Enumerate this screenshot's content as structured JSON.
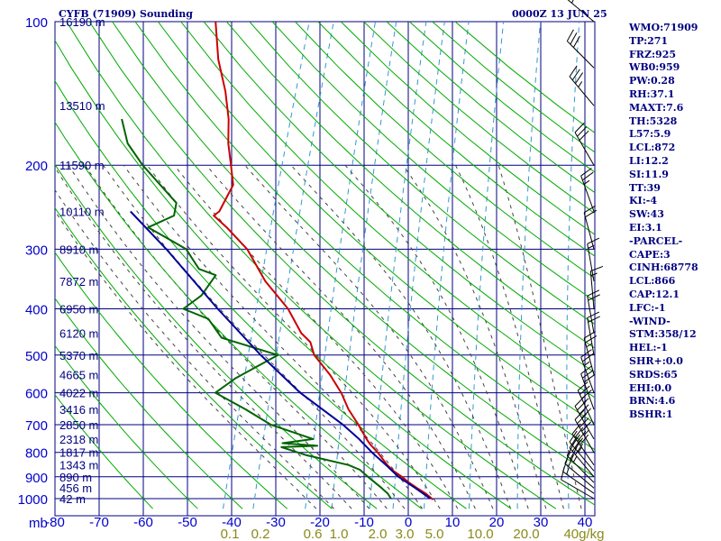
{
  "header": {
    "station": "CYFB (71909) Sounding",
    "time": "0000Z 13 JUN 25"
  },
  "indices": [
    "WMO:71909",
    "TP:271",
    "FRZ:925",
    "WB0:959",
    "PW:0.28",
    "RH:37.1",
    "MAXT:7.6",
    "TH:5328",
    "L57:5.9",
    "LCL:872",
    "LI:12.2",
    "SI:11.9",
    "TT:39",
    "KI:-4",
    "SW:43",
    "EI:3.1",
    "-PARCEL-",
    "CAPE:3",
    "CINH:68778",
    "LCL:866",
    "CAP:12.1",
    "LFC:-1",
    "-WIND-",
    "STM:358/12",
    "HEL:-1",
    "SHR+:0.0",
    "SRDS:65",
    "EHI:0.0",
    "BRN:4.6",
    "BSHR:1"
  ],
  "colors": {
    "grid": "#000080",
    "dry_adiabat": "#00aa00",
    "moist_adiabat": "#444444",
    "mixing_ratio": "#3399cc",
    "temperature": "#cc0000",
    "dewpoint": "#006400",
    "parcel": "#000099",
    "axis_text": "#0000cc",
    "mixing_text": "#8a8a1a"
  },
  "chart_data": {
    "type": "skew-t",
    "pressure_axis_unit": "mb",
    "temperature_axis_unit": "°C",
    "mixing_ratio_unit": "g/kg",
    "pressure_levels": [
      100,
      200,
      300,
      400,
      500,
      600,
      700,
      800,
      900,
      1000
    ],
    "pressure_tick_labels": [
      "100",
      "200",
      "300",
      "400",
      "500",
      "600",
      "700",
      "800",
      "900",
      "1000"
    ],
    "temperature_ticks": [
      -80,
      -70,
      -60,
      -50,
      -40,
      -30,
      -20,
      -10,
      0,
      10,
      20,
      30,
      40
    ],
    "temperature_tick_labels": [
      "-80",
      "-70",
      "-60",
      "-50",
      "-40",
      "-30",
      "-20",
      "-10",
      "0",
      "10",
      "20",
      "30",
      "40"
    ],
    "mixing_ratio_labels": [
      "0.1",
      "0.2",
      "0.6",
      "1.0",
      "2.0",
      "3.0",
      "5.0",
      "10.0",
      "20.0",
      "40g/kg"
    ],
    "height_labels": [
      {
        "p": 100,
        "text": "16190 m"
      },
      {
        "p": 150,
        "text": "13510 m"
      },
      {
        "p": 200,
        "text": "11590 m"
      },
      {
        "p": 250,
        "text": "10110 m"
      },
      {
        "p": 300,
        "text": "8910 m"
      },
      {
        "p": 350,
        "text": "7872 m"
      },
      {
        "p": 400,
        "text": "6950 m"
      },
      {
        "p": 450,
        "text": "6120 m"
      },
      {
        "p": 500,
        "text": "5370 m"
      },
      {
        "p": 550,
        "text": "4665 m"
      },
      {
        "p": 600,
        "text": "4022 m"
      },
      {
        "p": 650,
        "text": "3416 m"
      },
      {
        "p": 700,
        "text": "2850 m"
      },
      {
        "p": 750,
        "text": "2318 m"
      },
      {
        "p": 800,
        "text": "1817 m"
      },
      {
        "p": 850,
        "text": "1343 m"
      },
      {
        "p": 900,
        "text": "890 m"
      },
      {
        "p": 950,
        "text": "456 m"
      },
      {
        "p": 1000,
        "text": "42 m"
      }
    ],
    "series": [
      {
        "name": "Temperature",
        "points": [
          {
            "p": 1005,
            "t": 5.7
          },
          {
            "p": 975,
            "t": 3.5
          },
          {
            "p": 950,
            "t": 1.1
          },
          {
            "p": 925,
            "t": -1.2
          },
          {
            "p": 900,
            "t": -3.2
          },
          {
            "p": 875,
            "t": -5.6
          },
          {
            "p": 850,
            "t": -7.5
          },
          {
            "p": 800,
            "t": -10.7
          },
          {
            "p": 770,
            "t": -13.0
          },
          {
            "p": 750,
            "t": -14.3
          },
          {
            "p": 700,
            "t": -17.3
          },
          {
            "p": 650,
            "t": -20.8
          },
          {
            "p": 600,
            "t": -23.8
          },
          {
            "p": 550,
            "t": -27.8
          },
          {
            "p": 500,
            "t": -33.0
          },
          {
            "p": 470,
            "t": -34.9
          },
          {
            "p": 450,
            "t": -37.7
          },
          {
            "p": 400,
            "t": -42.7
          },
          {
            "p": 350,
            "t": -50.1
          },
          {
            "p": 300,
            "t": -56.8
          },
          {
            "p": 270,
            "t": -63.2
          },
          {
            "p": 255,
            "t": -67.1
          },
          {
            "p": 250,
            "t": -66.2
          },
          {
            "p": 220,
            "t": -65.2
          },
          {
            "p": 200,
            "t": -67.3
          },
          {
            "p": 180,
            "t": -69.7
          },
          {
            "p": 160,
            "t": -71.6
          },
          {
            "p": 140,
            "t": -74.6
          },
          {
            "p": 120,
            "t": -78.8
          },
          {
            "p": 100,
            "t": -82.5
          }
        ]
      },
      {
        "name": "Dewpoint",
        "points": [
          {
            "p": 1000,
            "t": -3.9
          },
          {
            "p": 975,
            "t": -5.1
          },
          {
            "p": 950,
            "t": -6.9
          },
          {
            "p": 900,
            "t": -10.9
          },
          {
            "p": 870,
            "t": -13.3
          },
          {
            "p": 850,
            "t": -16.3
          },
          {
            "p": 810,
            "t": -26.8
          },
          {
            "p": 780,
            "t": -32.9
          },
          {
            "p": 775,
            "t": -24.9
          },
          {
            "p": 765,
            "t": -33.0
          },
          {
            "p": 750,
            "t": -26.4
          },
          {
            "p": 700,
            "t": -37.1
          },
          {
            "p": 650,
            "t": -44.1
          },
          {
            "p": 600,
            "t": -52.3
          },
          {
            "p": 560,
            "t": -49.0
          },
          {
            "p": 500,
            "t": -41.2
          },
          {
            "p": 460,
            "t": -55.4
          },
          {
            "p": 420,
            "t": -59.9
          },
          {
            "p": 400,
            "t": -66.4
          },
          {
            "p": 375,
            "t": -63.4
          },
          {
            "p": 340,
            "t": -61.8
          },
          {
            "p": 330,
            "t": -66.1
          },
          {
            "p": 300,
            "t": -70.6
          },
          {
            "p": 290,
            "t": -73.9
          },
          {
            "p": 270,
            "t": -81.0
          },
          {
            "p": 255,
            "t": -76.1
          },
          {
            "p": 240,
            "t": -76.6
          },
          {
            "p": 200,
            "t": -87.3
          },
          {
            "p": 180,
            "t": -92.5
          },
          {
            "p": 160,
            "t": -95.8
          }
        ]
      },
      {
        "name": "Parcel",
        "points": [
          {
            "p": 1000,
            "t": 5.0
          },
          {
            "p": 950,
            "t": 0.7
          },
          {
            "p": 900,
            "t": -4.0
          },
          {
            "p": 850,
            "t": -7.8
          },
          {
            "p": 800,
            "t": -12.0
          },
          {
            "p": 750,
            "t": -16.0
          },
          {
            "p": 700,
            "t": -20.8
          },
          {
            "p": 600,
            "t": -33.1
          },
          {
            "p": 500,
            "t": -45.1
          },
          {
            "p": 400,
            "t": -58.6
          },
          {
            "p": 300,
            "t": -75.1
          },
          {
            "p": 250,
            "t": -86.3
          }
        ]
      }
    ],
    "wind_barbs": [
      {
        "p": 1000,
        "dir": 300,
        "spd": 10
      },
      {
        "p": 975,
        "dir": 305,
        "spd": 15
      },
      {
        "p": 950,
        "dir": 310,
        "spd": 20
      },
      {
        "p": 925,
        "dir": 315,
        "spd": 25
      },
      {
        "p": 900,
        "dir": 320,
        "spd": 30
      },
      {
        "p": 875,
        "dir": 320,
        "spd": 35
      },
      {
        "p": 850,
        "dir": 325,
        "spd": 40
      },
      {
        "p": 800,
        "dir": 330,
        "spd": 45
      },
      {
        "p": 750,
        "dir": 330,
        "spd": 40
      },
      {
        "p": 700,
        "dir": 335,
        "spd": 35
      },
      {
        "p": 650,
        "dir": 340,
        "spd": 30
      },
      {
        "p": 600,
        "dir": 340,
        "spd": 25
      },
      {
        "p": 550,
        "dir": 345,
        "spd": 25
      },
      {
        "p": 500,
        "dir": 350,
        "spd": 20
      },
      {
        "p": 450,
        "dir": 350,
        "spd": 20
      },
      {
        "p": 400,
        "dir": 355,
        "spd": 15
      },
      {
        "p": 350,
        "dir": 350,
        "spd": 15
      },
      {
        "p": 300,
        "dir": 345,
        "spd": 20
      },
      {
        "p": 250,
        "dir": 340,
        "spd": 25
      },
      {
        "p": 200,
        "dir": 330,
        "spd": 30
      },
      {
        "p": 150,
        "dir": 320,
        "spd": 35
      },
      {
        "p": 125,
        "dir": 315,
        "spd": 30
      },
      {
        "p": 100,
        "dir": 310,
        "spd": 25
      }
    ]
  }
}
